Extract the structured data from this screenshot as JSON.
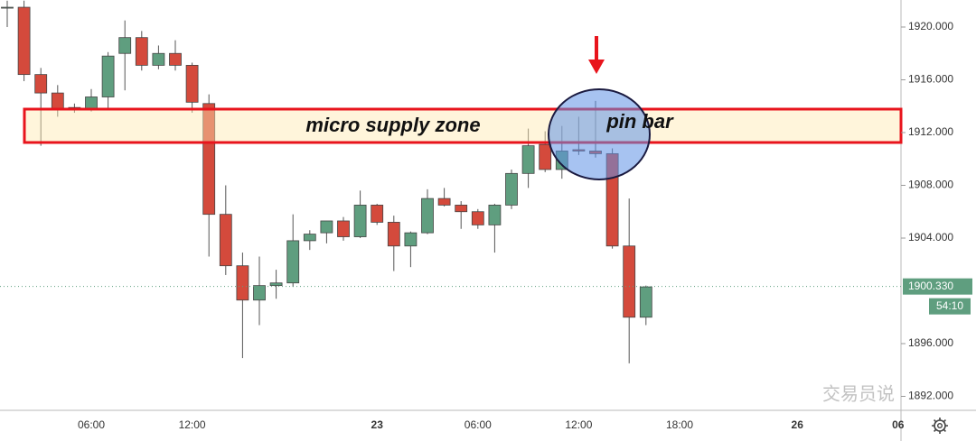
{
  "chart_data": {
    "type": "candlestick",
    "categories": [
      null,
      null,
      null,
      null,
      null,
      "06:00",
      null,
      null,
      null,
      null,
      null,
      "12:00",
      null,
      null,
      null,
      null,
      null,
      null,
      null,
      null,
      null,
      null,
      "23",
      null,
      null,
      null,
      null,
      null,
      "06:00",
      null,
      null,
      null,
      null,
      null,
      "12:00",
      null,
      null,
      null,
      null,
      null,
      "18:00",
      null,
      null,
      null,
      null,
      null,
      null,
      "26",
      null,
      null,
      null,
      null,
      null,
      "06"
    ],
    "open": [
      1921.5,
      1921.5,
      1916.4,
      1915.0,
      1913.9,
      1913.8,
      1914.7,
      1918.0,
      1919.2,
      1917.1,
      1918.0,
      1917.1,
      1914.2,
      1905.8,
      1901.9,
      1899.3,
      1900.4,
      1900.6,
      1903.8,
      1904.4,
      1905.3,
      1904.1,
      1906.5,
      1905.2,
      1903.4,
      1904.4,
      1907.0,
      1906.5,
      1906.0,
      1905.0,
      1906.5,
      1908.9,
      1911.1,
      1909.2,
      1910.7,
      1910.6,
      1910.4,
      1903.4,
      1898.0,
      null,
      null,
      null,
      null,
      null,
      null,
      null,
      null,
      null,
      null,
      null,
      null,
      null,
      null,
      null
    ],
    "high": [
      1922.0,
      1922.0,
      1916.9,
      1915.6,
      1914.2,
      1915.3,
      1918.1,
      1920.5,
      1919.7,
      1918.6,
      1919.0,
      1917.3,
      1914.9,
      1908.0,
      1902.9,
      1902.6,
      1901.6,
      1905.8,
      1904.6,
      1905.3,
      1905.6,
      1907.6,
      1906.6,
      1905.7,
      1904.5,
      1907.7,
      1907.8,
      1906.8,
      1906.2,
      1906.6,
      1909.2,
      1912.3,
      1912.1,
      1912.5,
      1913.2,
      1914.4,
      1910.8,
      1907.0,
      1900.4,
      null,
      null,
      null,
      null,
      null,
      null,
      null,
      null,
      null,
      null,
      null,
      null,
      null,
      null,
      null
    ],
    "low": [
      1920.0,
      1915.9,
      1911.0,
      1913.2,
      1913.5,
      1913.6,
      1913.8,
      1915.2,
      1916.7,
      1916.8,
      1916.7,
      1913.5,
      1902.6,
      1901.2,
      1894.9,
      1897.4,
      1899.4,
      1900.3,
      1903.1,
      1903.6,
      1903.8,
      1904.0,
      1905.0,
      1901.5,
      1901.8,
      1904.3,
      1906.4,
      1904.7,
      1904.7,
      1902.9,
      1906.2,
      1907.8,
      1909.0,
      1908.5,
      1910.3,
      1910.1,
      1903.2,
      1894.5,
      1897.4,
      null,
      null,
      null,
      null,
      null,
      null,
      null,
      null,
      null,
      null,
      null,
      null,
      null,
      null,
      null
    ],
    "close": [
      1921.5,
      1916.4,
      1915.0,
      1913.8,
      1913.8,
      1914.7,
      1917.8,
      1919.2,
      1917.1,
      1918.0,
      1917.1,
      1914.3,
      1905.8,
      1901.9,
      1899.3,
      1900.4,
      1900.6,
      1903.8,
      1904.3,
      1905.3,
      1904.1,
      1906.5,
      1905.2,
      1903.4,
      1904.4,
      1907.0,
      1906.5,
      1906.0,
      1905.0,
      1906.5,
      1908.9,
      1911.0,
      1909.2,
      1910.6,
      1910.6,
      1910.4,
      1903.4,
      1898.0,
      1900.3,
      null,
      null,
      null,
      null,
      null,
      null,
      null,
      null,
      null,
      null,
      null,
      null,
      null,
      null,
      null
    ],
    "up_color": "#5f9e7f",
    "down_color": "#d44a3c",
    "ylim": [
      1890.94,
      1922.05
    ],
    "yticks": [
      {
        "value": 1892,
        "label": "1892.000"
      },
      {
        "value": 1896,
        "label": "1896.000"
      },
      {
        "value": 1904,
        "label": "1904.000"
      },
      {
        "value": 1908,
        "label": "1908.000"
      },
      {
        "value": 1912,
        "label": "1912.000"
      },
      {
        "value": 1916,
        "label": "1916.000"
      },
      {
        "value": 1920,
        "label": "1920.000"
      }
    ],
    "last_price": {
      "value": 1900.33,
      "label": "1900.330"
    },
    "countdown": "54:10",
    "annotations": [
      "micro supply zone",
      "pin bar"
    ],
    "watermark": "交易员说"
  }
}
